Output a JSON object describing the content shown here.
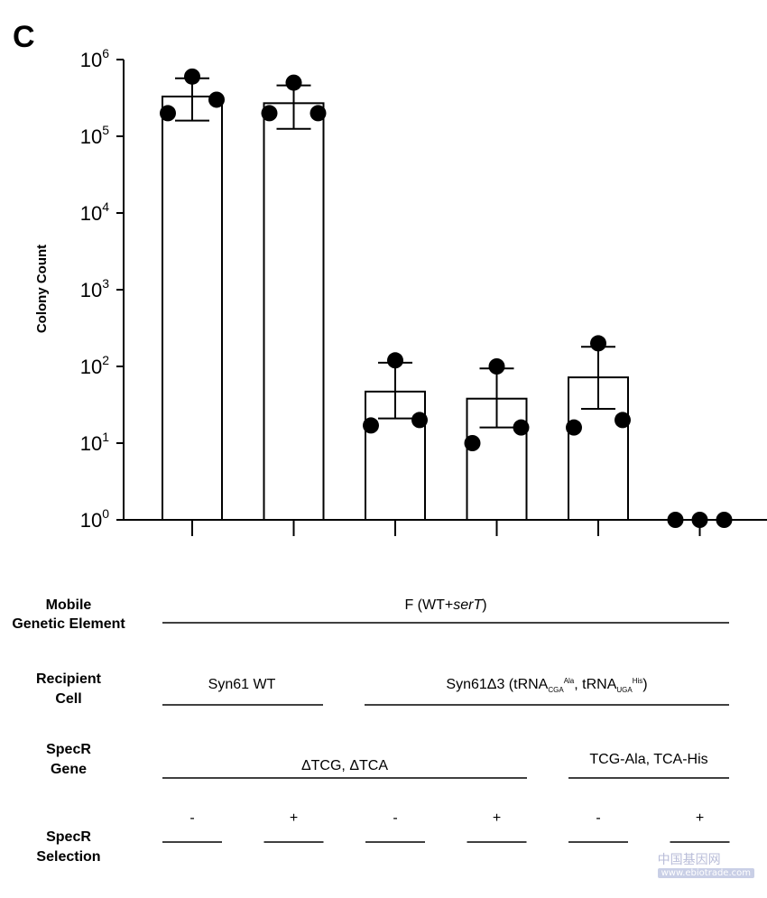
{
  "panel_label": "C",
  "chart_data": {
    "type": "bar",
    "yscale": "log",
    "ylim": [
      1,
      1000000
    ],
    "ylabel": "Colony Count",
    "ytick_base": "10",
    "ytick_exponents": [
      "0",
      "1",
      "2",
      "3",
      "4",
      "5",
      "6"
    ],
    "ytick_values": [
      1,
      10,
      100,
      1000,
      10000,
      100000,
      1000000
    ],
    "bars": [
      {
        "mean": 330000,
        "err_low": 160000,
        "err_high": 570000,
        "points": [
          200000,
          600000,
          300000
        ]
      },
      {
        "mean": 270000,
        "err_low": 125000,
        "err_high": 460000,
        "points": [
          200000,
          500000,
          200000
        ]
      },
      {
        "mean": 47,
        "err_low": 21,
        "err_high": 112,
        "points": [
          17,
          120,
          20
        ]
      },
      {
        "mean": 38,
        "err_low": 16,
        "err_high": 94,
        "points": [
          10,
          100,
          16
        ]
      },
      {
        "mean": 72,
        "err_low": 28,
        "err_high": 180,
        "points": [
          16,
          200,
          20
        ]
      },
      {
        "mean": 1,
        "err_low": 1,
        "err_high": 1,
        "points": [
          1,
          1,
          1
        ]
      }
    ]
  },
  "table": {
    "mobile_label_1": "Mobile",
    "mobile_label_2": "Genetic Element",
    "mobile_value_pre": "F (WT+",
    "mobile_value_italic": "serT",
    "mobile_value_post": ")",
    "recipient_label_1": "Recipient",
    "recipient_label_2": "Cell",
    "recipient_wt": "Syn61 WT",
    "recipient_d3_pre": "Syn61Δ3 (tRNA",
    "recipient_d3_sub1": "CGA",
    "recipient_d3_sup1": "Ala",
    "recipient_d3_mid": ", tRNA",
    "recipient_d3_sub2": "UGA",
    "recipient_d3_sup2": "His",
    "recipient_d3_post": ")",
    "specr_gene_label_1": "SpecR",
    "specr_gene_label_2": "Gene",
    "specr_gene_delta": "ΔTCG, ΔTCA",
    "specr_gene_recoded": "TCG-Ala, TCA-His",
    "selection_label_1": "SpecR",
    "selection_label_2": "Selection",
    "selection_values": [
      "-",
      "+",
      "-",
      "+",
      "-",
      "+"
    ]
  },
  "watermark": {
    "main": "中国基因网",
    "sub": "www.ebiotrade.com"
  }
}
